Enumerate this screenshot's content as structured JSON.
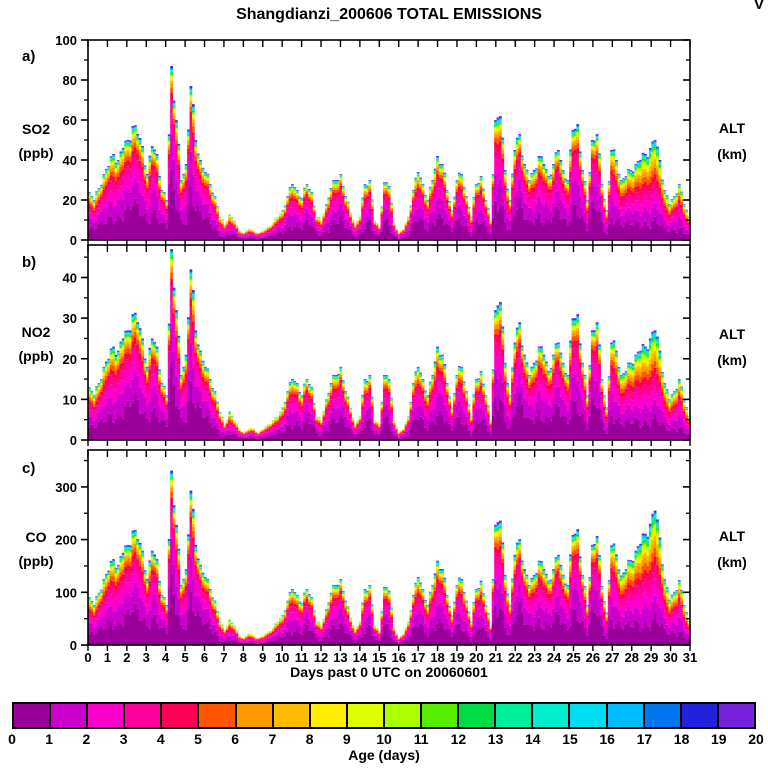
{
  "title": "Shangdianzi_200606 TOTAL EMISSIONS",
  "corner_mark": "V",
  "xlabel": "Days past 0 UTC on 20060601",
  "colorbar": {
    "label": "Age (days)",
    "ticks": [
      0,
      1,
      2,
      3,
      4,
      5,
      6,
      7,
      8,
      9,
      10,
      11,
      12,
      13,
      14,
      15,
      16,
      17,
      18,
      19,
      20
    ],
    "colors": [
      "#990099",
      "#CC00CC",
      "#FF00CC",
      "#FF0099",
      "#FF0055",
      "#FF5500",
      "#FF9900",
      "#FFBB00",
      "#FFEE00",
      "#DDFF00",
      "#AAFF00",
      "#55EE00",
      "#00DD44",
      "#00EE99",
      "#00EECC",
      "#00DDEE",
      "#00BBFF",
      "#0077EE",
      "#2222DD",
      "#7722DD"
    ]
  },
  "chart_data": {
    "type": "area",
    "stacked": true,
    "stack_dimension": "age of emissions (days), 0 at bottom to 20 at top",
    "x_start": 0,
    "x_step": 0.25,
    "x_ticks": [
      0,
      1,
      2,
      3,
      4,
      5,
      6,
      7,
      8,
      9,
      10,
      11,
      12,
      13,
      14,
      15,
      16,
      17,
      18,
      19,
      20,
      21,
      22,
      23,
      24,
      25,
      26,
      27,
      28,
      29,
      30,
      31
    ],
    "xlim": [
      0,
      31
    ],
    "aged_fraction": [
      0.45,
      0.45,
      0.42,
      0.4,
      0.35,
      0.35,
      0.35,
      0.35,
      0.35,
      0.33,
      0.33,
      0.35,
      0.3,
      0.28,
      0.28,
      0.32,
      0.3,
      0.25,
      0.27,
      0.33,
      0.28,
      0.24,
      0.27,
      0.3,
      0.32,
      0.35,
      0.38,
      0.45,
      0.5,
      0.5,
      0.52,
      0.55,
      0.55,
      0.55,
      0.55,
      0.55,
      0.52,
      0.5,
      0.48,
      0.45,
      0.4,
      0.35,
      0.32,
      0.32,
      0.33,
      0.3,
      0.32,
      0.4,
      0.4,
      0.35,
      0.32,
      0.3,
      0.3,
      0.32,
      0.38,
      0.45,
      0.4,
      0.32,
      0.3,
      0.4,
      0.45,
      0.32,
      0.32,
      0.45,
      0.52,
      0.5,
      0.45,
      0.38,
      0.33,
      0.33,
      0.35,
      0.33,
      0.3,
      0.3,
      0.33,
      0.4,
      0.35,
      0.32,
      0.35,
      0.42,
      0.35,
      0.32,
      0.38,
      0.45,
      0.28,
      0.27,
      0.32,
      0.4,
      0.3,
      0.28,
      0.32,
      0.35,
      0.33,
      0.31,
      0.32,
      0.34,
      0.33,
      0.3,
      0.33,
      0.36,
      0.28,
      0.27,
      0.32,
      0.4,
      0.3,
      0.29,
      0.35,
      0.45,
      0.38,
      0.42,
      0.48,
      0.52,
      0.55,
      0.6,
      0.64,
      0.68,
      0.7,
      0.72,
      0.7,
      0.65,
      0.55,
      0.5,
      0.48,
      0.5,
      0.52
    ],
    "panels": [
      {
        "tag": "a)",
        "species": "SO2",
        "unit": "(ppb)",
        "right_label": "ALT",
        "right_unit": "(km)",
        "ylim": [
          0,
          100
        ],
        "yticks": [
          0,
          20,
          40,
          60,
          80,
          100
        ],
        "minor_step": 10,
        "totals": [
          24,
          20,
          26,
          33,
          37,
          43,
          40,
          46,
          50,
          57,
          53,
          47,
          33,
          47,
          43,
          25,
          20,
          87,
          60,
          30,
          38,
          77,
          50,
          40,
          34,
          28,
          22,
          12,
          8,
          13,
          10,
          5,
          4,
          6,
          5,
          4,
          5,
          7,
          9,
          12,
          15,
          22,
          28,
          25,
          21,
          28,
          24,
          12,
          10,
          18,
          26,
          30,
          33,
          22,
          14,
          8,
          12,
          28,
          30,
          10,
          7,
          29,
          27,
          9,
          4,
          6,
          12,
          25,
          34,
          28,
          20,
          30,
          42,
          38,
          25,
          15,
          30,
          33,
          22,
          12,
          28,
          32,
          20,
          10,
          60,
          62,
          35,
          20,
          45,
          53,
          38,
          30,
          35,
          42,
          38,
          32,
          38,
          45,
          35,
          30,
          55,
          58,
          35,
          20,
          50,
          53,
          28,
          15,
          45,
          40,
          30,
          32,
          35,
          38,
          40,
          43,
          46,
          50,
          40,
          25,
          18,
          22,
          28,
          18,
          12
        ]
      },
      {
        "tag": "b)",
        "species": "NO2",
        "unit": "(ppb)",
        "right_label": "ALT",
        "right_unit": "(km)",
        "ylim": [
          0,
          48
        ],
        "yticks": [
          0,
          10,
          20,
          30,
          40
        ],
        "minor_step": 5,
        "totals": [
          13,
          11,
          14,
          18,
          20,
          23,
          22,
          25,
          27,
          31,
          29,
          25,
          18,
          25,
          23,
          14,
          11,
          47,
          32,
          16,
          21,
          42,
          27,
          22,
          18,
          15,
          12,
          7,
          4,
          7,
          5,
          3,
          2,
          3,
          3,
          2,
          3,
          4,
          5,
          6,
          8,
          12,
          15,
          14,
          11,
          15,
          13,
          6,
          5,
          10,
          14,
          16,
          18,
          12,
          8,
          4,
          6,
          15,
          16,
          5,
          4,
          16,
          15,
          5,
          2,
          3,
          6,
          14,
          18,
          15,
          11,
          16,
          23,
          21,
          14,
          8,
          16,
          18,
          12,
          6,
          15,
          17,
          11,
          5,
          32,
          34,
          19,
          11,
          24,
          29,
          21,
          16,
          19,
          23,
          21,
          17,
          21,
          24,
          19,
          16,
          30,
          31,
          19,
          11,
          27,
          29,
          15,
          8,
          24,
          22,
          16,
          17,
          19,
          21,
          22,
          23,
          25,
          27,
          22,
          14,
          10,
          12,
          15,
          10,
          6
        ]
      },
      {
        "tag": "c)",
        "species": "CO",
        "unit": "(ppb)",
        "right_label": "ALT",
        "right_unit": "(km)",
        "ylim": [
          0,
          370
        ],
        "yticks": [
          0,
          100,
          200,
          300
        ],
        "minor_step": 50,
        "totals": [
          91,
          76,
          99,
          125,
          141,
          163,
          152,
          175,
          190,
          217,
          201,
          179,
          125,
          179,
          163,
          95,
          76,
          331,
          228,
          114,
          144,
          293,
          190,
          152,
          129,
          106,
          84,
          46,
          30,
          49,
          38,
          19,
          15,
          23,
          19,
          15,
          19,
          27,
          34,
          46,
          57,
          84,
          106,
          95,
          80,
          106,
          91,
          46,
          38,
          68,
          99,
          114,
          125,
          84,
          53,
          30,
          46,
          106,
          114,
          38,
          27,
          110,
          103,
          34,
          15,
          23,
          46,
          95,
          129,
          106,
          76,
          114,
          160,
          144,
          95,
          57,
          114,
          125,
          84,
          46,
          106,
          122,
          76,
          38,
          228,
          236,
          133,
          76,
          171,
          201,
          144,
          114,
          133,
          160,
          144,
          122,
          144,
          171,
          133,
          114,
          209,
          220,
          133,
          76,
          190,
          207,
          112,
          62,
          189,
          172,
          132,
          144,
          161,
          179,
          192,
          211,
          230,
          255,
          204,
          125,
          86,
          101,
          123,
          76,
          48
        ]
      }
    ]
  }
}
